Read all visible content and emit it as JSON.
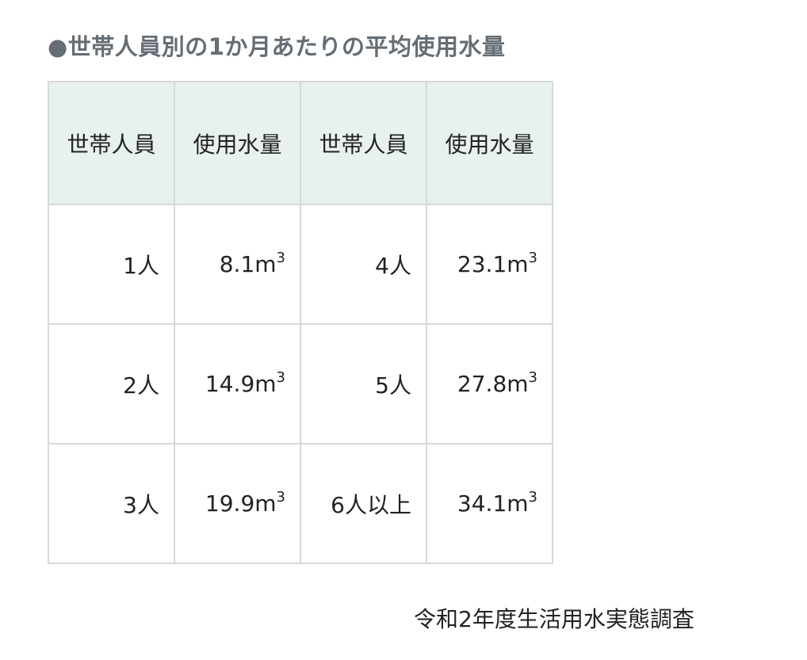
{
  "title": "●世帯人員別の1か月あたりの平均使用水量",
  "table": {
    "headers": [
      "世帯人員",
      "使用水量",
      "世帯人員",
      "使用水量"
    ],
    "rows": [
      {
        "p1": "1人",
        "v1": "8.1m",
        "p2": "4人",
        "v2": "23.1m"
      },
      {
        "p1": "2人",
        "v1": "14.9m",
        "p2": "5人",
        "v2": "27.8m"
      },
      {
        "p1": "3人",
        "v1": "19.9m",
        "p2": "6人以上",
        "v2": "34.1m"
      }
    ],
    "unit_superscript": "3",
    "header_bg": "#e8f2ec",
    "border_color": "#d8d8d8"
  },
  "source": "令和2年度生活用水実態調査",
  "title_color": "#656d75"
}
